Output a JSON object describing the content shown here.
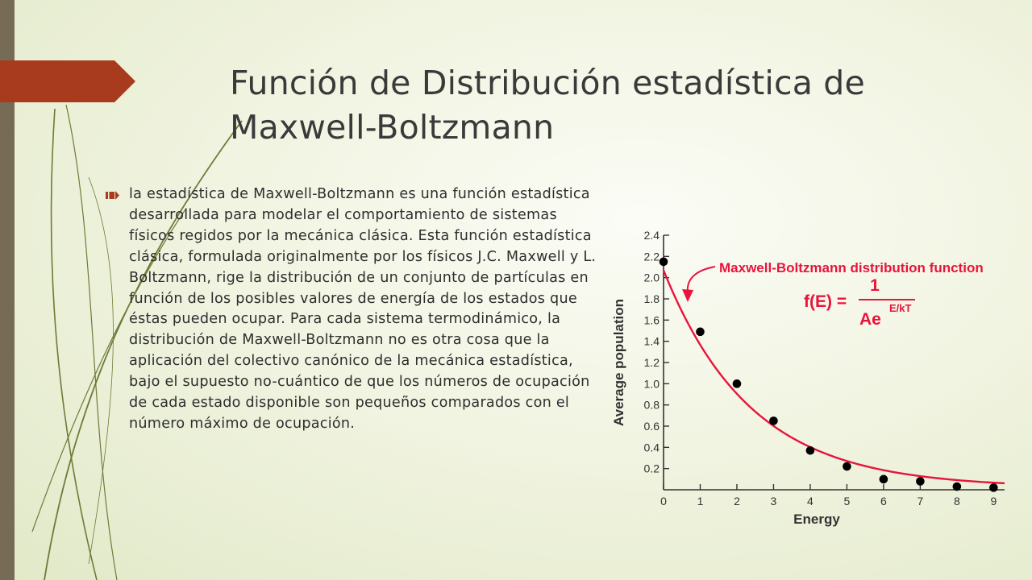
{
  "slide": {
    "title": "Función de Distribución estadística de Maxwell-Boltzmann",
    "accent_color": "#a83a1e",
    "band_color": "#766c55",
    "bullet_icon": "chevron-bullet-icon",
    "body": "la estadística de Maxwell-Boltzmann es una función estadística desarrollada para modelar el comportamiento de sistemas físicos regidos por la mecánica clásica. Esta función estadística clásica, formulada originalmente por los físicos J.C. Maxwell y L. Boltzmann, rige la distribución de un conjunto de partículas en función de los posibles valores de energía de los estados que éstas pueden ocupar. Para cada sistema termodinámico, la distribución de Maxwell-Boltzmann no es otra cosa que la aplicación del colectivo canónico de la mecánica estadística, bajo el supuesto no-cuántico de que los números de ocupación de cada estado disponible son pequeños comparados con el número máximo de ocupación."
  },
  "chart_data": {
    "type": "scatter",
    "title": "Maxwell-Boltzmann distribution function",
    "formula": {
      "lhs": "f(E) =",
      "numerator": "1",
      "denominator_base": "Ae",
      "denominator_exponent": "E/kT"
    },
    "xlabel": "Energy",
    "ylabel": "Average population",
    "xlim": [
      0,
      9.3
    ],
    "ylim": [
      0,
      2.4
    ],
    "x_ticks": [
      "0",
      "1",
      "2",
      "3",
      "4",
      "5",
      "6",
      "7",
      "8",
      "9"
    ],
    "y_ticks": [
      "0.2",
      "0.4",
      "0.6",
      "0.8",
      "1.0",
      "1.2",
      "1.4",
      "1.6",
      "1.8",
      "2.0",
      "2.2",
      "2.4"
    ],
    "points": [
      {
        "x": 0,
        "y": 2.15
      },
      {
        "x": 1,
        "y": 1.49
      },
      {
        "x": 2,
        "y": 1.0
      },
      {
        "x": 3,
        "y": 0.65
      },
      {
        "x": 4,
        "y": 0.37
      },
      {
        "x": 5,
        "y": 0.22
      },
      {
        "x": 6,
        "y": 0.1
      },
      {
        "x": 7,
        "y": 0.08
      },
      {
        "x": 8,
        "y": 0.03
      },
      {
        "x": 9,
        "y": 0.02
      }
    ],
    "fit_curve": {
      "amplitude": 2.05,
      "decay": 0.42,
      "offset": 0.02
    },
    "curve_color": "#e8143c",
    "annotation_color": "#e8143c",
    "text_color": "#333333",
    "point_color": "#000000"
  }
}
